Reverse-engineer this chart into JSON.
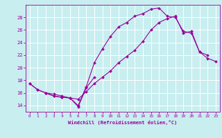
{
  "xlabel": "Windchill (Refroidissement éolien,°C)",
  "bg_color": "#c8eef0",
  "line_color": "#990099",
  "grid_color": "#ffffff",
  "xlim": [
    -0.5,
    23.5
  ],
  "ylim": [
    13.0,
    30.0
  ],
  "yticks": [
    14,
    16,
    18,
    20,
    22,
    24,
    26,
    28
  ],
  "xticks": [
    0,
    1,
    2,
    3,
    4,
    5,
    6,
    7,
    8,
    9,
    10,
    11,
    12,
    13,
    14,
    15,
    16,
    17,
    18,
    19,
    20,
    21,
    22,
    23
  ],
  "curve1": {
    "x": [
      0,
      1,
      2,
      3,
      4,
      5,
      6,
      7,
      8
    ],
    "y": [
      17.5,
      16.5,
      16.0,
      15.5,
      15.3,
      15.2,
      13.8,
      16.8,
      18.5
    ]
  },
  "curve2": {
    "x": [
      0,
      1,
      2,
      3,
      4,
      5,
      6,
      7,
      8,
      9,
      10,
      11,
      12,
      13,
      14,
      15,
      16,
      17,
      18,
      19,
      20,
      21,
      22
    ],
    "y": [
      17.5,
      16.5,
      16.0,
      15.5,
      15.3,
      15.2,
      14.0,
      17.0,
      20.8,
      23.0,
      25.0,
      26.5,
      27.2,
      28.2,
      28.6,
      29.3,
      29.5,
      28.2,
      28.0,
      25.8,
      25.5,
      22.5,
      22.0
    ]
  },
  "curve3": {
    "x": [
      2,
      3,
      4,
      5,
      6,
      7,
      8,
      9,
      10,
      11,
      12,
      13,
      14,
      15,
      16,
      17,
      18,
      19,
      20,
      21,
      22,
      23
    ],
    "y": [
      16.0,
      15.8,
      15.5,
      15.2,
      15.0,
      16.2,
      17.5,
      18.5,
      19.5,
      20.8,
      21.8,
      22.8,
      24.2,
      26.0,
      27.2,
      27.8,
      28.2,
      25.5,
      25.8,
      22.5,
      21.5,
      21.0
    ]
  }
}
